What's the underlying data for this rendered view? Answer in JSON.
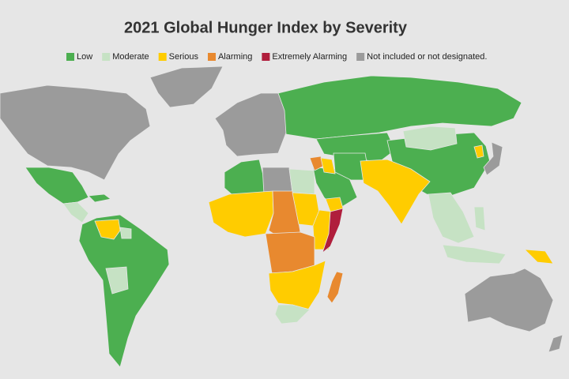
{
  "title": "2021 Global Hunger Index by Severity",
  "legend": [
    {
      "label": "Low",
      "color": "#4caf50"
    },
    {
      "label": "Moderate",
      "color": "#c6e2c4"
    },
    {
      "label": "Serious",
      "color": "#ffcc00"
    },
    {
      "label": "Alarming",
      "color": "#e8892f"
    },
    {
      "label": "Extremely Alarming",
      "color": "#b01e3c"
    },
    {
      "label": "Not included or not designated.",
      "color": "#9b9b9b"
    }
  ]
}
